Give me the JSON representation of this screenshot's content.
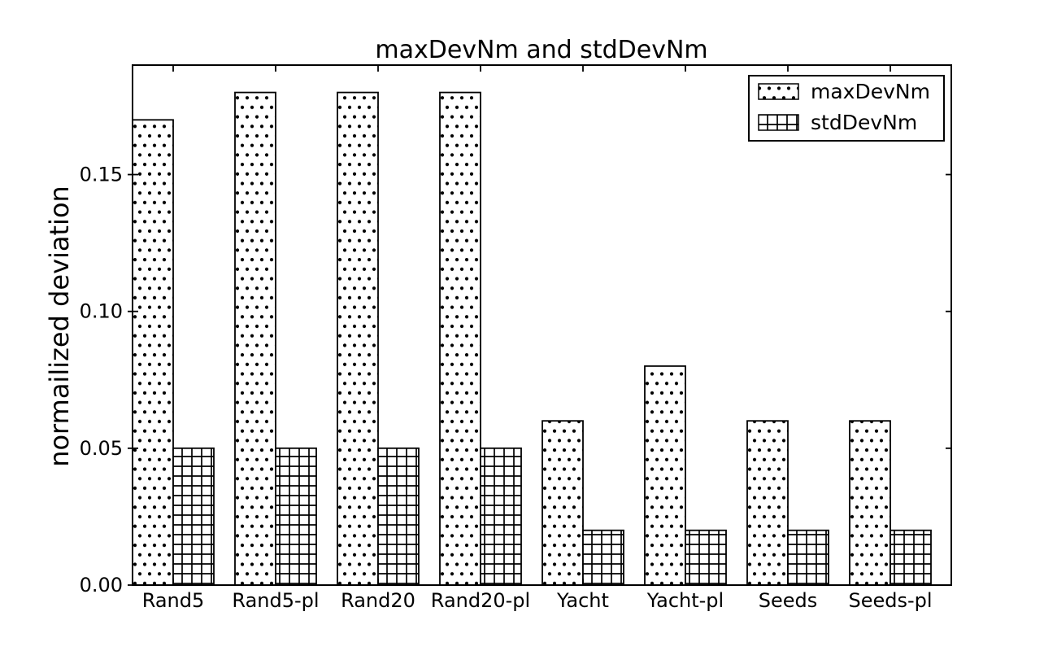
{
  "figure": {
    "background": "#ffffff",
    "foreground": "#000000"
  },
  "chart_data": {
    "type": "bar",
    "title": "maxDevNm and stdDevNm",
    "xlabel": "",
    "ylabel": "normailized deviation",
    "categories": [
      "Rand5",
      "Rand5-pl",
      "Rand20",
      "Rand20-pl",
      "Yacht",
      "Yacht-pl",
      "Seeds",
      "Seeds-pl"
    ],
    "series": [
      {
        "name": "maxDevNm",
        "hatch": "dots",
        "values": [
          0.17,
          0.18,
          0.18,
          0.18,
          0.06,
          0.08,
          0.06,
          0.06
        ]
      },
      {
        "name": "stdDevNm",
        "hatch": "grid",
        "values": [
          0.05,
          0.05,
          0.05,
          0.05,
          0.02,
          0.02,
          0.02,
          0.02
        ]
      }
    ],
    "ylim": [
      0,
      0.19
    ],
    "yticks": [
      {
        "value": 0.0,
        "label": "0.00"
      },
      {
        "value": 0.05,
        "label": "0.05"
      },
      {
        "value": 0.1,
        "label": "0.10"
      },
      {
        "value": 0.15,
        "label": "0.15"
      }
    ],
    "grid": false,
    "legend_position": "upper right",
    "bar_fill": "#ffffff",
    "hatch_color": "#000000"
  }
}
